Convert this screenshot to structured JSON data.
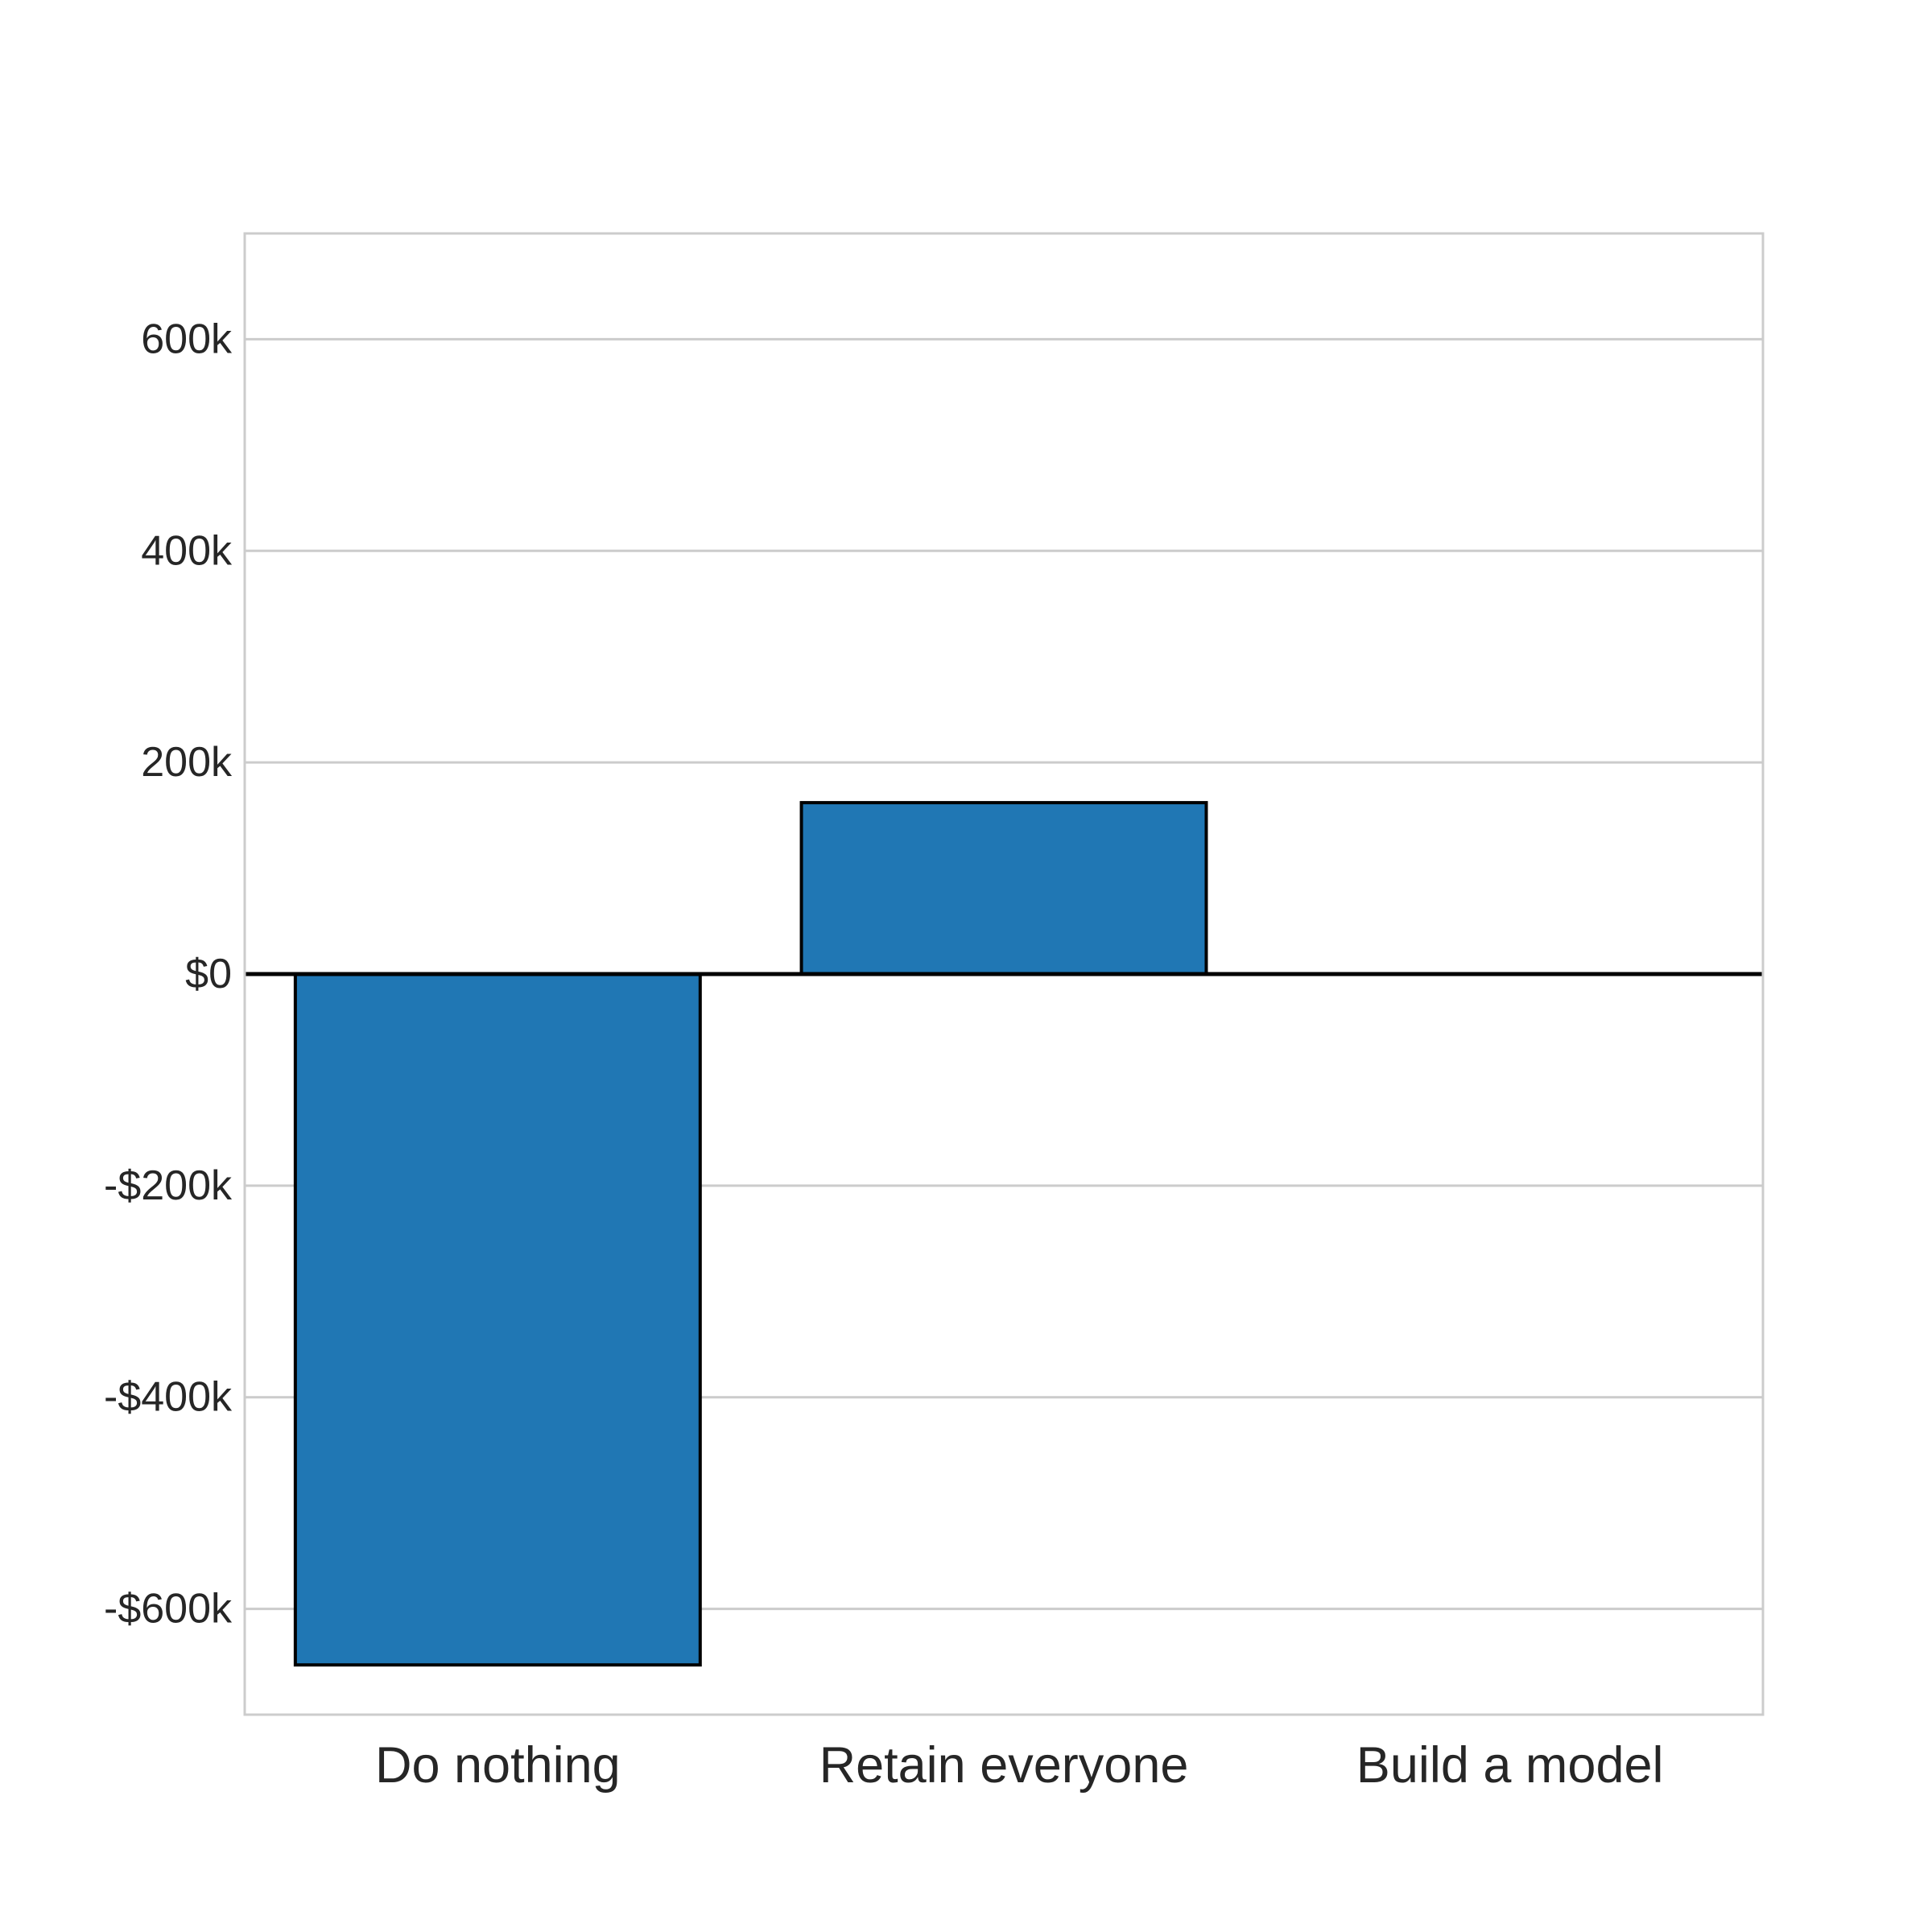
{
  "chart_data": {
    "type": "bar",
    "categories": [
      "Do nothing",
      "Retain everyone",
      "Build a model"
    ],
    "values": [
      -653000,
      162000,
      0
    ],
    "ylim": [
      -700000,
      700000
    ],
    "yticks": [
      -600000,
      -400000,
      -200000,
      0,
      200000,
      400000,
      600000
    ],
    "ytick_labels": [
      "-$600k",
      "-$400k",
      "-$200k",
      "$0",
      "200k",
      "400k",
      "600k"
    ],
    "title": "",
    "xlabel": "",
    "ylabel": "",
    "grid": "horizontal",
    "zero_line": true,
    "colors": {
      "bar": "#2077b4",
      "bar_edge": "#000000",
      "grid": "#cccccc",
      "frame": "#cccccc",
      "zero_line": "#000000",
      "text": "#262626"
    }
  }
}
